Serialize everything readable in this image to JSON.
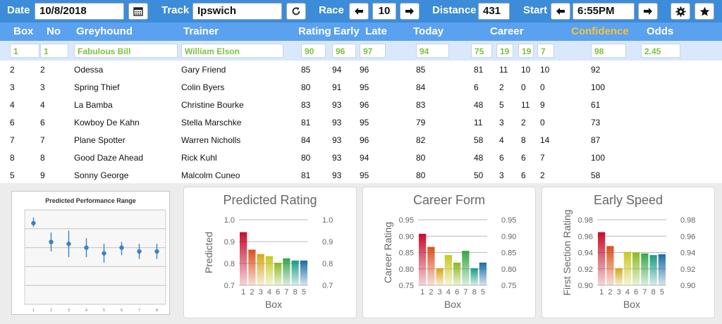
{
  "toolbar": {
    "date_label": "Date",
    "date_value": "10/8/2018",
    "calendar_icon": "calendar-icon",
    "track_label": "Track",
    "track_value": "Ipswich",
    "refresh_icon": "refresh-icon",
    "race_label": "Race",
    "race_value": "10",
    "distance_label": "Distance",
    "distance_value": "431",
    "start_label": "Start",
    "start_value": "6:55PM",
    "settings_icon": "gear-icon",
    "favorite_icon": "star-icon"
  },
  "header": {
    "box": "Box",
    "no": "No",
    "greyhound": "Greyhound",
    "trainer": "Trainer",
    "rating": "Rating",
    "early": "Early",
    "late": "Late",
    "today": "Today",
    "career": "Career",
    "confidence": "Confidence",
    "odds": "Odds"
  },
  "rows": [
    {
      "box": "1",
      "no": "1",
      "greyhound": "Fabulous Bill",
      "trainer": "William Elson",
      "rating": "90",
      "early": "96",
      "late": "97",
      "today": "94",
      "c1": "75",
      "c2": "19",
      "c3": "19",
      "c4": "7",
      "confidence": "98",
      "odds": "2.45"
    },
    {
      "box": "2",
      "no": "2",
      "greyhound": "Odessa",
      "trainer": "Gary Friend",
      "rating": "85",
      "early": "94",
      "late": "96",
      "today": "85",
      "c1": "81",
      "c2": "11",
      "c3": "10",
      "c4": "10",
      "confidence": "92",
      "odds": ""
    },
    {
      "box": "3",
      "no": "3",
      "greyhound": "Spring Thief",
      "trainer": "Colin Byers",
      "rating": "80",
      "early": "91",
      "late": "95",
      "today": "84",
      "c1": "6",
      "c2": "2",
      "c3": "0",
      "c4": "0",
      "confidence": "100",
      "odds": ""
    },
    {
      "box": "4",
      "no": "4",
      "greyhound": "La Bamba",
      "trainer": "Christine Bourke",
      "rating": "83",
      "early": "93",
      "late": "96",
      "today": "83",
      "c1": "48",
      "c2": "5",
      "c3": "11",
      "c4": "9",
      "confidence": "61",
      "odds": ""
    },
    {
      "box": "6",
      "no": "6",
      "greyhound": "Kowboy De Kahn",
      "trainer": "Stella Marschke",
      "rating": "81",
      "early": "93",
      "late": "95",
      "today": "79",
      "c1": "11",
      "c2": "3",
      "c3": "2",
      "c4": "0",
      "confidence": "73",
      "odds": ""
    },
    {
      "box": "7",
      "no": "7",
      "greyhound": "Plane Spotter",
      "trainer": "Warren Nicholls",
      "rating": "84",
      "early": "93",
      "late": "96",
      "today": "82",
      "c1": "58",
      "c2": "4",
      "c3": "8",
      "c4": "14",
      "confidence": "87",
      "odds": ""
    },
    {
      "box": "8",
      "no": "8",
      "greyhound": "Good Daze Ahead",
      "trainer": "Rick Kuhl",
      "rating": "80",
      "early": "93",
      "late": "94",
      "today": "80",
      "c1": "48",
      "c2": "6",
      "c3": "6",
      "c4": "7",
      "confidence": "100",
      "odds": ""
    },
    {
      "box": "5",
      "no": "9",
      "greyhound": "Sonny George",
      "trainer": "Malcolm Cuneo",
      "rating": "81",
      "early": "93",
      "late": "95",
      "today": "80",
      "c1": "50",
      "c2": "3",
      "c3": "6",
      "c4": "2",
      "confidence": "58",
      "odds": ""
    }
  ],
  "colors": {
    "toolbar": "#3c8cd9",
    "header": "#5aa1ef",
    "selected_text": "#7cc23e",
    "confidence_header": "#f7c23c",
    "range_marker": "#3b82c4"
  },
  "chart_data": [
    {
      "type": "scatter",
      "title": "Predicted Performance Range",
      "categories": [
        "1",
        "2",
        "3",
        "4",
        "5",
        "6",
        "7",
        "8"
      ],
      "mid": [
        0.93,
        0.83,
        0.82,
        0.8,
        0.77,
        0.8,
        0.78,
        0.78
      ],
      "low": [
        0.91,
        0.78,
        0.75,
        0.75,
        0.72,
        0.76,
        0.74,
        0.74
      ],
      "high": [
        0.96,
        0.88,
        0.89,
        0.85,
        0.82,
        0.83,
        0.82,
        0.82
      ],
      "ylim": [
        0.5,
        1.0
      ],
      "grid": true
    },
    {
      "type": "bar",
      "title": "Predicted Rating",
      "xlabel": "Box",
      "ylabel": "Predicted",
      "categories": [
        "1",
        "2",
        "3",
        "4",
        "6",
        "7",
        "8",
        "5"
      ],
      "values": [
        0.94,
        0.86,
        0.84,
        0.83,
        0.8,
        0.82,
        0.81,
        0.81
      ],
      "ylim": [
        0.7,
        1.0
      ],
      "yticks": [
        "0.7",
        "0.8",
        "0.9",
        "1.0"
      ],
      "colors": [
        "#c8102e",
        "#d9531e",
        "#d9a51a",
        "#c9c824",
        "#8dbb27",
        "#3aa64a",
        "#1e9d8a",
        "#1e6fa8"
      ]
    },
    {
      "type": "bar",
      "title": "Career Form",
      "xlabel": "Box",
      "ylabel": "Career Rating",
      "categories": [
        "1",
        "2",
        "3",
        "4",
        "6",
        "7",
        "8",
        "5"
      ],
      "values": [
        0.905,
        0.865,
        0.8,
        0.84,
        0.817,
        0.853,
        0.8,
        0.817
      ],
      "ylim": [
        0.75,
        0.95
      ],
      "yticks": [
        "0.75",
        "0.80",
        "0.85",
        "0.90",
        "0.95"
      ],
      "colors": [
        "#c8102e",
        "#d9531e",
        "#d9a51a",
        "#c9c824",
        "#8dbb27",
        "#3aa64a",
        "#1e9d8a",
        "#1e6fa8"
      ]
    },
    {
      "type": "bar",
      "title": "Early Speed",
      "xlabel": "Box",
      "ylabel": "First Section Rating",
      "categories": [
        "1",
        "2",
        "3",
        "4",
        "6",
        "7",
        "8",
        "5"
      ],
      "values": [
        0.964,
        0.947,
        0.92,
        0.94,
        0.939,
        0.938,
        0.936,
        0.937
      ],
      "ylim": [
        0.9,
        0.98
      ],
      "yticks": [
        "0.90",
        "0.92",
        "0.94",
        "0.96",
        "0.98"
      ],
      "colors": [
        "#c8102e",
        "#d9531e",
        "#d9a51a",
        "#c9c824",
        "#8dbb27",
        "#3aa64a",
        "#1e9d8a",
        "#1e6fa8"
      ]
    }
  ]
}
